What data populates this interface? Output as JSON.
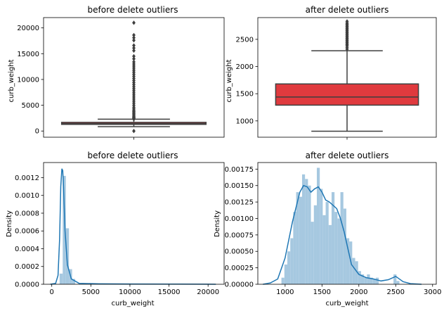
{
  "chart_data": [
    {
      "type": "box",
      "title": "before delete outliers",
      "xlabel": "",
      "ylabel": "curb_weight",
      "ylim": [
        -1200,
        22000
      ],
      "yticks": [
        0,
        5000,
        10000,
        15000,
        20000
      ],
      "color": "#e03a3e",
      "box": {
        "whisker_low": 850,
        "q1": 1290,
        "median": 1440,
        "q3": 1680,
        "whisker_high": 2290
      },
      "outliers": [
        0,
        2300,
        2400,
        2500,
        2600,
        2700,
        2800,
        3000,
        3200,
        3400,
        3600,
        3800,
        4000,
        4300,
        4600,
        5000,
        5400,
        5800,
        6200,
        6600,
        7000,
        7400,
        7800,
        8200,
        8600,
        9000,
        9400,
        9800,
        10200,
        10600,
        11000,
        11400,
        11800,
        12200,
        12600,
        13000,
        13400,
        14000,
        14500,
        15600,
        16100,
        16600,
        17600,
        18100,
        18600,
        21000
      ]
    },
    {
      "type": "box",
      "title": "after delete outliers",
      "xlabel": "",
      "ylabel": "curb_weight",
      "ylim": [
        700,
        2900
      ],
      "yticks": [
        1000,
        1500,
        2000,
        2500
      ],
      "color": "#e03a3e",
      "box": {
        "whisker_low": 810,
        "q1": 1290,
        "median": 1440,
        "q3": 1680,
        "whisker_high": 2290
      },
      "outliers": [
        2320,
        2350,
        2380,
        2400,
        2420,
        2440,
        2460,
        2480,
        2500,
        2520,
        2540,
        2560,
        2580,
        2600,
        2620,
        2640,
        2660,
        2680,
        2700,
        2720,
        2740,
        2760,
        2780,
        2800,
        2830
      ]
    },
    {
      "type": "histogram",
      "title": "before delete outliers",
      "xlabel": "curb_weight",
      "ylabel": "Density",
      "xlim": [
        -1050,
        22050
      ],
      "ylim": [
        0,
        0.00137
      ],
      "xticks": [
        0,
        5000,
        10000,
        15000,
        20000
      ],
      "yticks": [
        0,
        0.0002,
        0.0004,
        0.0006,
        0.0008,
        0.001,
        0.0012
      ],
      "ytick_labels": [
        "0.0000",
        "0.0002",
        "0.0004",
        "0.0006",
        "0.0008",
        "0.0010",
        "0.0012"
      ],
      "bar_color": "#a6c8e0",
      "line_color": "#1f77b4",
      "bins": [
        {
          "x0": 1000,
          "x1": 1400,
          "density": 0.00012
        },
        {
          "x0": 1400,
          "x1": 1800,
          "density": 0.00122
        },
        {
          "x0": 1800,
          "x1": 2200,
          "density": 0.00063
        },
        {
          "x0": 2200,
          "x1": 2600,
          "density": 0.00017
        },
        {
          "x0": 2600,
          "x1": 3000,
          "density": 6e-05
        }
      ],
      "kde": [
        [
          -200,
          0
        ],
        [
          500,
          1e-05
        ],
        [
          800,
          0.0001
        ],
        [
          1000,
          0.0005
        ],
        [
          1150,
          0.0011
        ],
        [
          1300,
          0.0013
        ],
        [
          1400,
          0.00128
        ],
        [
          1500,
          0.0011
        ],
        [
          1700,
          0.0006
        ],
        [
          2000,
          0.00022
        ],
        [
          2500,
          6e-05
        ],
        [
          3500,
          1e-05
        ],
        [
          6000,
          5e-06
        ],
        [
          10000,
          3e-06
        ],
        [
          15000,
          2e-06
        ],
        [
          20000,
          1e-06
        ],
        [
          21000,
          0
        ]
      ]
    },
    {
      "type": "histogram",
      "title": "after delete outliers",
      "xlabel": "curb_weight",
      "ylabel": "Density",
      "xlim": [
        630,
        3050
      ],
      "ylim": [
        0,
        0.00185
      ],
      "xticks": [
        1000,
        1500,
        2000,
        2500,
        3000
      ],
      "yticks": [
        0,
        0.00025,
        0.0005,
        0.00075,
        0.001,
        0.00125,
        0.0015,
        0.00175
      ],
      "ytick_labels": [
        "0.00000",
        "0.00025",
        "0.00050",
        "0.00075",
        "0.00100",
        "0.00125",
        "0.00150",
        "0.00175"
      ],
      "bar_color": "#a6c8e0",
      "line_color": "#1f77b4",
      "bins": [
        {
          "x0": 950,
          "x1": 990,
          "density": 0.0001
        },
        {
          "x0": 990,
          "x1": 1030,
          "density": 0.0003
        },
        {
          "x0": 1030,
          "x1": 1070,
          "density": 0.0005
        },
        {
          "x0": 1070,
          "x1": 1110,
          "density": 0.0007
        },
        {
          "x0": 1110,
          "x1": 1150,
          "density": 0.0011
        },
        {
          "x0": 1150,
          "x1": 1190,
          "density": 0.0014
        },
        {
          "x0": 1190,
          "x1": 1230,
          "density": 0.00133
        },
        {
          "x0": 1230,
          "x1": 1270,
          "density": 0.00167
        },
        {
          "x0": 1270,
          "x1": 1310,
          "density": 0.0016
        },
        {
          "x0": 1310,
          "x1": 1350,
          "density": 0.0015
        },
        {
          "x0": 1350,
          "x1": 1390,
          "density": 0.00095
        },
        {
          "x0": 1390,
          "x1": 1430,
          "density": 0.0012
        },
        {
          "x0": 1430,
          "x1": 1470,
          "density": 0.00177
        },
        {
          "x0": 1470,
          "x1": 1510,
          "density": 0.00145
        },
        {
          "x0": 1510,
          "x1": 1550,
          "density": 0.00105
        },
        {
          "x0": 1550,
          "x1": 1590,
          "density": 0.00125
        },
        {
          "x0": 1590,
          "x1": 1630,
          "density": 0.0009
        },
        {
          "x0": 1630,
          "x1": 1670,
          "density": 0.0014
        },
        {
          "x0": 1670,
          "x1": 1710,
          "density": 0.0011
        },
        {
          "x0": 1710,
          "x1": 1750,
          "density": 0.001
        },
        {
          "x0": 1750,
          "x1": 1790,
          "density": 0.0014
        },
        {
          "x0": 1790,
          "x1": 1830,
          "density": 0.00115
        },
        {
          "x0": 1830,
          "x1": 1870,
          "density": 0.0007
        },
        {
          "x0": 1870,
          "x1": 1910,
          "density": 0.00065
        },
        {
          "x0": 1910,
          "x1": 1950,
          "density": 0.0004
        },
        {
          "x0": 1950,
          "x1": 1990,
          "density": 0.00035
        },
        {
          "x0": 1990,
          "x1": 2030,
          "density": 0.0002
        },
        {
          "x0": 2030,
          "x1": 2070,
          "density": 0.00015
        },
        {
          "x0": 2070,
          "x1": 2110,
          "density": 0.0001
        },
        {
          "x0": 2110,
          "x1": 2150,
          "density": 0.00015
        },
        {
          "x0": 2150,
          "x1": 2190,
          "density": 0.0001
        },
        {
          "x0": 2190,
          "x1": 2230,
          "density": 8e-05
        },
        {
          "x0": 2230,
          "x1": 2270,
          "density": 0.0001
        },
        {
          "x0": 2470,
          "x1": 2510,
          "density": 0.00015
        },
        {
          "x0": 2510,
          "x1": 2550,
          "density": 5e-05
        }
      ],
      "kde": [
        [
          700,
          0
        ],
        [
          800,
          2e-05
        ],
        [
          900,
          8e-05
        ],
        [
          1000,
          0.0004
        ],
        [
          1100,
          0.00095
        ],
        [
          1200,
          0.0014
        ],
        [
          1250,
          0.0015
        ],
        [
          1300,
          0.00148
        ],
        [
          1350,
          0.0014
        ],
        [
          1400,
          0.00145
        ],
        [
          1450,
          0.00148
        ],
        [
          1500,
          0.0014
        ],
        [
          1550,
          0.00128
        ],
        [
          1600,
          0.00125
        ],
        [
          1650,
          0.0012
        ],
        [
          1700,
          0.00115
        ],
        [
          1750,
          0.001
        ],
        [
          1800,
          0.0008
        ],
        [
          1850,
          0.00055
        ],
        [
          1900,
          0.0003
        ],
        [
          2000,
          0.00015
        ],
        [
          2100,
          0.0001
        ],
        [
          2200,
          8e-05
        ],
        [
          2300,
          5e-05
        ],
        [
          2400,
          7e-05
        ],
        [
          2500,
          0.00012
        ],
        [
          2600,
          4e-05
        ],
        [
          2700,
          1e-05
        ],
        [
          2850,
          0
        ]
      ]
    }
  ]
}
